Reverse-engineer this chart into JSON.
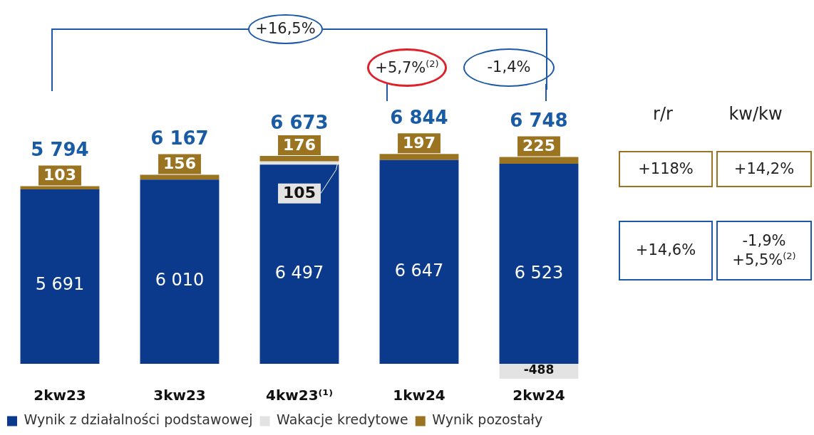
{
  "chart_data": {
    "type": "bar",
    "stacked": true,
    "categories": [
      "2kw23",
      "3kw23",
      "4kw23⁽¹⁾",
      "1kw24",
      "2kw24"
    ],
    "series": [
      {
        "name": "Wynik z działalności podstawowej",
        "color": "#0b3a8c",
        "values": [
          5691,
          6010,
          6497,
          6647,
          6523
        ],
        "value_labels": [
          "5 691",
          "6 010",
          "6 497",
          "6 647",
          "6 523"
        ]
      },
      {
        "name": "Wakacje kredytowe",
        "color": "#e3e3e3",
        "values": [
          null,
          null,
          105,
          null,
          -488
        ],
        "value_labels": [
          null,
          null,
          "105",
          null,
          "-488"
        ]
      },
      {
        "name": "Wynik pozostały",
        "color": "#9a7420",
        "values": [
          103,
          156,
          176,
          197,
          225
        ],
        "value_labels": [
          "103",
          "156",
          "176",
          "197",
          "225"
        ]
      }
    ],
    "legend": "bottom left",
    "annotations": [
      {
        "text": "5 794",
        "x": "2kw23",
        "y": 5794
      },
      {
        "text": "6 167",
        "x": "3kw23",
        "y": 6167
      },
      {
        "text": "6 673",
        "x": "4kw23⁽¹⁾",
        "y": 6673
      },
      {
        "text": "6 844",
        "x": "1kw24",
        "y": 6844
      },
      {
        "text": "6 748",
        "x": "2kw24",
        "y": 6748
      },
      "+16,5%",
      "+5,7%$^{(2)}$",
      "-1,4%",
      "r/r",
      "kw/kw",
      "+118%",
      "+14,2%",
      "+14,6%",
      "-1,9%",
      "+5,5%$^{(2)}$"
    ]
  }
}
